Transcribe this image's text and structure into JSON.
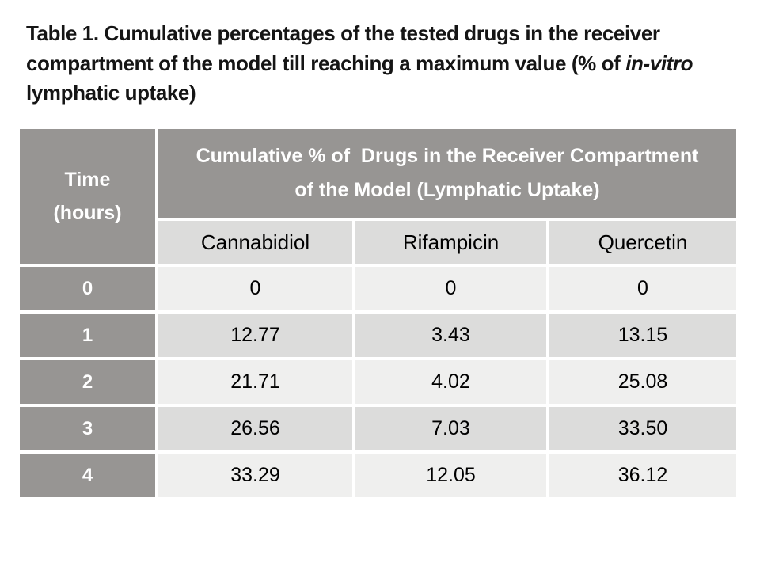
{
  "title": {
    "before_italic": "Table 1. Cumulative percentages of the tested drugs in the receiver compartment of the model till reaching a maximum value (% of ",
    "italic": "in-vitro",
    "after_italic": " lymphatic uptake)"
  },
  "table": {
    "time_header": "Time\n(hours)",
    "main_header": "Cumulative % of  Drugs in the Receiver Compartment\nof the Model (Lymphatic Uptake)",
    "columns": [
      "Cannabidiol",
      "Rifampicin",
      "Quercetin"
    ],
    "rows": [
      {
        "time": "0",
        "values": [
          "0",
          "0",
          "0"
        ]
      },
      {
        "time": "1",
        "values": [
          "12.77",
          "3.43",
          "13.15"
        ]
      },
      {
        "time": "2",
        "values": [
          "21.71",
          "4.02",
          "25.08"
        ]
      },
      {
        "time": "3",
        "values": [
          "26.56",
          "7.03",
          "33.50"
        ]
      },
      {
        "time": "4",
        "values": [
          "33.29",
          "12.05",
          "36.12"
        ]
      }
    ]
  },
  "chart_data": {
    "type": "table",
    "title": "Table 1. Cumulative percentages of the tested drugs in the receiver compartment of the model till reaching a maximum value (% of in-vitro lymphatic uptake)",
    "row_label": "Time (hours)",
    "group_header": "Cumulative % of Drugs in the Receiver Compartment of the Model (Lymphatic Uptake)",
    "categories": [
      0,
      1,
      2,
      3,
      4
    ],
    "series": [
      {
        "name": "Cannabidiol",
        "values": [
          0,
          12.77,
          21.71,
          26.56,
          33.29
        ]
      },
      {
        "name": "Rifampicin",
        "values": [
          0,
          3.43,
          4.02,
          7.03,
          12.05
        ]
      },
      {
        "name": "Quercetin",
        "values": [
          0,
          13.15,
          25.08,
          33.5,
          36.12
        ]
      }
    ]
  },
  "colors": {
    "background": "#ffffff",
    "header_gray": "#979593",
    "band_light": "#efefee",
    "band_dark": "#dcdcdb",
    "header_text": "#ffffff",
    "body_text": "#000000"
  }
}
